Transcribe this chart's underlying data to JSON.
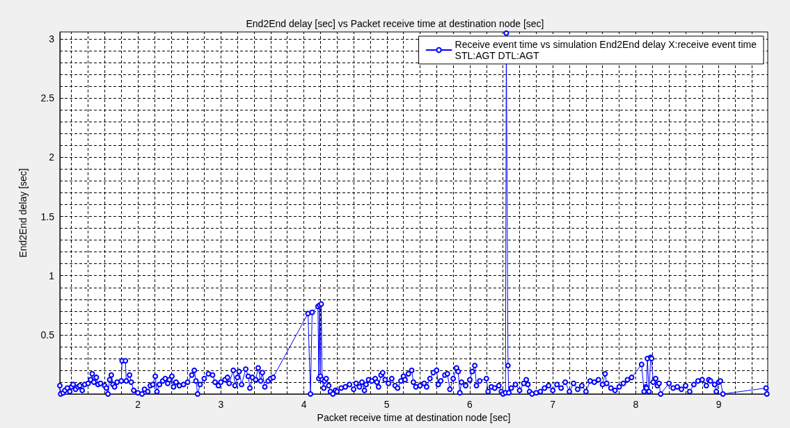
{
  "chart_data": {
    "type": "line",
    "title": "End2End delay [sec] vs Packet receive time at destination node [sec]",
    "xlabel": "Packet receive time at destination node [sec]",
    "ylabel": "End2End delay [sec]",
    "series": [
      {
        "name": "Receive event time vs simulation End2End delay X:receive event time\nSTL:AGT DTL:AGT",
        "color": "#0000ff",
        "x": [
          1.06,
          1.07,
          1.1,
          1.12,
          1.15,
          1.18,
          1.2,
          1.22,
          1.25,
          1.28,
          1.3,
          1.33,
          1.36,
          1.4,
          1.43,
          1.45,
          1.47,
          1.5,
          1.52,
          1.55,
          1.6,
          1.62,
          1.64,
          1.66,
          1.68,
          1.7,
          1.72,
          1.75,
          1.8,
          1.81,
          1.85,
          1.86,
          1.9,
          1.92,
          1.95,
          2.0,
          2.05,
          2.08,
          2.12,
          2.15,
          2.18,
          2.21,
          2.23,
          2.26,
          2.3,
          2.33,
          2.36,
          2.38,
          2.41,
          2.43,
          2.46,
          2.5,
          2.55,
          2.6,
          2.65,
          2.68,
          2.7,
          2.72,
          2.75,
          2.8,
          2.85,
          2.9,
          2.93,
          2.97,
          3.0,
          3.05,
          3.08,
          3.1,
          3.15,
          3.17,
          3.2,
          3.22,
          3.25,
          3.3,
          3.33,
          3.35,
          3.38,
          3.42,
          3.45,
          3.48,
          3.5,
          3.53,
          3.57,
          3.6,
          3.63,
          4.05,
          4.08,
          4.1,
          4.17,
          4.18,
          4.19,
          4.2,
          4.21,
          4.22,
          4.24,
          4.25,
          4.27,
          4.3,
          4.32,
          4.35,
          4.38,
          4.4,
          4.45,
          4.5,
          4.55,
          4.6,
          4.63,
          4.67,
          4.7,
          4.73,
          4.75,
          4.78,
          4.82,
          4.86,
          4.88,
          4.9,
          4.93,
          4.95,
          4.98,
          5.02,
          5.06,
          5.1,
          5.13,
          5.17,
          5.2,
          5.22,
          5.26,
          5.3,
          5.32,
          5.35,
          5.4,
          5.45,
          5.48,
          5.52,
          5.56,
          5.6,
          5.62,
          5.65,
          5.7,
          5.73,
          5.76,
          5.8,
          5.84,
          5.86,
          5.88,
          5.9,
          5.95,
          6.0,
          6.03,
          6.06,
          6.08,
          6.12,
          6.2,
          6.22,
          6.26,
          6.3,
          6.35,
          6.38,
          6.4,
          6.43,
          6.44,
          6.46,
          6.47,
          6.5,
          6.55,
          6.6,
          6.65,
          6.68,
          6.7,
          6.72,
          6.75,
          6.8,
          6.85,
          6.9,
          6.95,
          7.0,
          7.05,
          7.1,
          7.15,
          7.2,
          7.25,
          7.3,
          7.35,
          7.4,
          7.45,
          7.5,
          7.55,
          7.6,
          7.63,
          7.65,
          7.7,
          7.75,
          7.8,
          7.85,
          7.9,
          7.95,
          8.07,
          8.1,
          8.12,
          8.13,
          8.14,
          8.16,
          8.18,
          8.19,
          8.21,
          8.24,
          8.26,
          8.28,
          8.3,
          8.4,
          8.45,
          8.5,
          8.55,
          8.6,
          8.65,
          8.7,
          8.75,
          8.8,
          8.85,
          8.88,
          8.9,
          8.95,
          8.97,
          9.0,
          9.02,
          9.05,
          9.57,
          9.58
        ],
        "values": [
          0.07,
          0.0,
          0.01,
          0.03,
          0.05,
          0.02,
          0.06,
          0.08,
          0.04,
          0.06,
          0.07,
          0.03,
          0.08,
          0.09,
          0.12,
          0.17,
          0.1,
          0.14,
          0.08,
          0.09,
          0.07,
          0.05,
          0.0,
          0.12,
          0.16,
          0.08,
          0.06,
          0.1,
          0.11,
          0.28,
          0.28,
          0.11,
          0.16,
          0.1,
          0.03,
          0.01,
          0.0,
          0.04,
          0.02,
          0.07,
          0.08,
          0.15,
          0.02,
          0.08,
          0.11,
          0.13,
          0.09,
          0.12,
          0.15,
          0.06,
          0.1,
          0.07,
          0.08,
          0.1,
          0.16,
          0.2,
          0.11,
          0.0,
          0.08,
          0.13,
          0.17,
          0.16,
          0.1,
          0.07,
          0.1,
          0.12,
          0.14,
          0.09,
          0.2,
          0.07,
          0.14,
          0.19,
          0.08,
          0.21,
          0.15,
          0.05,
          0.14,
          0.12,
          0.22,
          0.11,
          0.18,
          0.06,
          0.11,
          0.13,
          0.14,
          0.68,
          0.0,
          0.69,
          0.74,
          0.13,
          0.75,
          0.15,
          0.76,
          0.12,
          0.05,
          0.11,
          0.13,
          0.07,
          0.02,
          0.0,
          0.03,
          0.02,
          0.05,
          0.06,
          0.08,
          0.04,
          0.09,
          0.06,
          0.1,
          0.03,
          0.08,
          0.12,
          0.11,
          0.13,
          0.1,
          0.06,
          0.16,
          0.18,
          0.12,
          0.09,
          0.13,
          0.07,
          0.05,
          0.11,
          0.15,
          0.12,
          0.17,
          0.2,
          0.1,
          0.06,
          0.07,
          0.09,
          0.06,
          0.13,
          0.18,
          0.2,
          0.08,
          0.11,
          0.16,
          0.17,
          0.04,
          0.13,
          0.22,
          0.19,
          0.01,
          0.1,
          0.07,
          0.12,
          0.19,
          0.24,
          0.07,
          0.11,
          0.13,
          0.02,
          0.06,
          0.05,
          0.07,
          0.02,
          0.0,
          0.01,
          3.05,
          0.24,
          0.01,
          0.05,
          0.08,
          0.03,
          0.09,
          0.12,
          0.08,
          0.02,
          0.0,
          0.01,
          0.02,
          0.05,
          0.07,
          0.03,
          0.08,
          0.05,
          0.1,
          0.02,
          0.09,
          0.04,
          0.07,
          0.02,
          0.11,
          0.1,
          0.12,
          0.08,
          0.17,
          0.09,
          0.05,
          0.03,
          0.06,
          0.09,
          0.12,
          0.14,
          0.25,
          0.02,
          0.06,
          0.05,
          0.3,
          0.02,
          0.31,
          0.3,
          0.1,
          0.13,
          0.07,
          0.09,
          0.0,
          0.09,
          0.05,
          0.06,
          0.04,
          0.07,
          0.02,
          0.08,
          0.11,
          0.12,
          0.07,
          0.12,
          0.11,
          0.08,
          0.02,
          0.1,
          0.11,
          0.0,
          0.05,
          0.0
        ]
      }
    ],
    "xlim": [
      1.06,
      9.59
    ],
    "ylim": [
      0,
      3.06
    ],
    "xticks": [
      {
        "value": 1.2,
        "label": null
      },
      {
        "value": 1.4,
        "label": null
      },
      {
        "value": 1.6,
        "label": null
      },
      {
        "value": 1.8,
        "label": null
      },
      2,
      {
        "value": 2.2,
        "label": null
      },
      {
        "value": 2.4,
        "label": null
      },
      {
        "value": 2.6,
        "label": null
      },
      {
        "value": 2.8,
        "label": null
      },
      3,
      {
        "value": 3.2,
        "label": null
      },
      {
        "value": 3.4,
        "label": null
      },
      {
        "value": 3.6,
        "label": null
      },
      {
        "value": 3.8,
        "label": null
      },
      4,
      {
        "value": 4.2,
        "label": null
      },
      {
        "value": 4.4,
        "label": null
      },
      {
        "value": 4.6,
        "label": null
      },
      {
        "value": 4.8,
        "label": null
      },
      5,
      {
        "value": 5.2,
        "label": null
      },
      {
        "value": 5.4,
        "label": null
      },
      {
        "value": 5.6,
        "label": null
      },
      {
        "value": 5.8,
        "label": null
      },
      6,
      {
        "value": 6.2,
        "label": null
      },
      {
        "value": 6.4,
        "label": null
      },
      {
        "value": 6.6,
        "label": null
      },
      {
        "value": 6.8,
        "label": null
      },
      7,
      {
        "value": 7.2,
        "label": null
      },
      {
        "value": 7.4,
        "label": null
      },
      {
        "value": 7.6,
        "label": null
      },
      {
        "value": 7.8,
        "label": null
      },
      8,
      {
        "value": 8.2,
        "label": null
      },
      {
        "value": 8.4,
        "label": null
      },
      {
        "value": 8.6,
        "label": null
      },
      {
        "value": 8.8,
        "label": null
      },
      9,
      {
        "value": 9.2,
        "label": null
      },
      {
        "value": 9.4,
        "label": null
      }
    ],
    "yticks": [
      {
        "value": 0,
        "label": null
      },
      {
        "value": 0.1,
        "label": null
      },
      {
        "value": 0.2,
        "label": null
      },
      {
        "value": 0.3,
        "label": null
      },
      {
        "value": 0.4,
        "label": null
      },
      0.5,
      {
        "value": 0.6,
        "label": null
      },
      {
        "value": 0.7,
        "label": null
      },
      {
        "value": 0.8,
        "label": null
      },
      {
        "value": 0.9,
        "label": null
      },
      1,
      {
        "value": 1.1,
        "label": null
      },
      {
        "value": 1.2,
        "label": null
      },
      {
        "value": 1.3,
        "label": null
      },
      {
        "value": 1.4,
        "label": null
      },
      1.5,
      {
        "value": 1.6,
        "label": null
      },
      {
        "value": 1.7,
        "label": null
      },
      {
        "value": 1.8,
        "label": null
      },
      {
        "value": 1.9,
        "label": null
      },
      2,
      {
        "value": 2.1,
        "label": null
      },
      {
        "value": 2.2,
        "label": null
      },
      {
        "value": 2.3,
        "label": null
      },
      {
        "value": 2.4,
        "label": null
      },
      2.5,
      {
        "value": 2.6,
        "label": null
      },
      {
        "value": 2.7,
        "label": null
      },
      {
        "value": 2.8,
        "label": null
      },
      {
        "value": 2.9,
        "label": null
      },
      3
    ],
    "grid": true,
    "legend": "top right",
    "marker": "circle",
    "line_style": "solid"
  }
}
